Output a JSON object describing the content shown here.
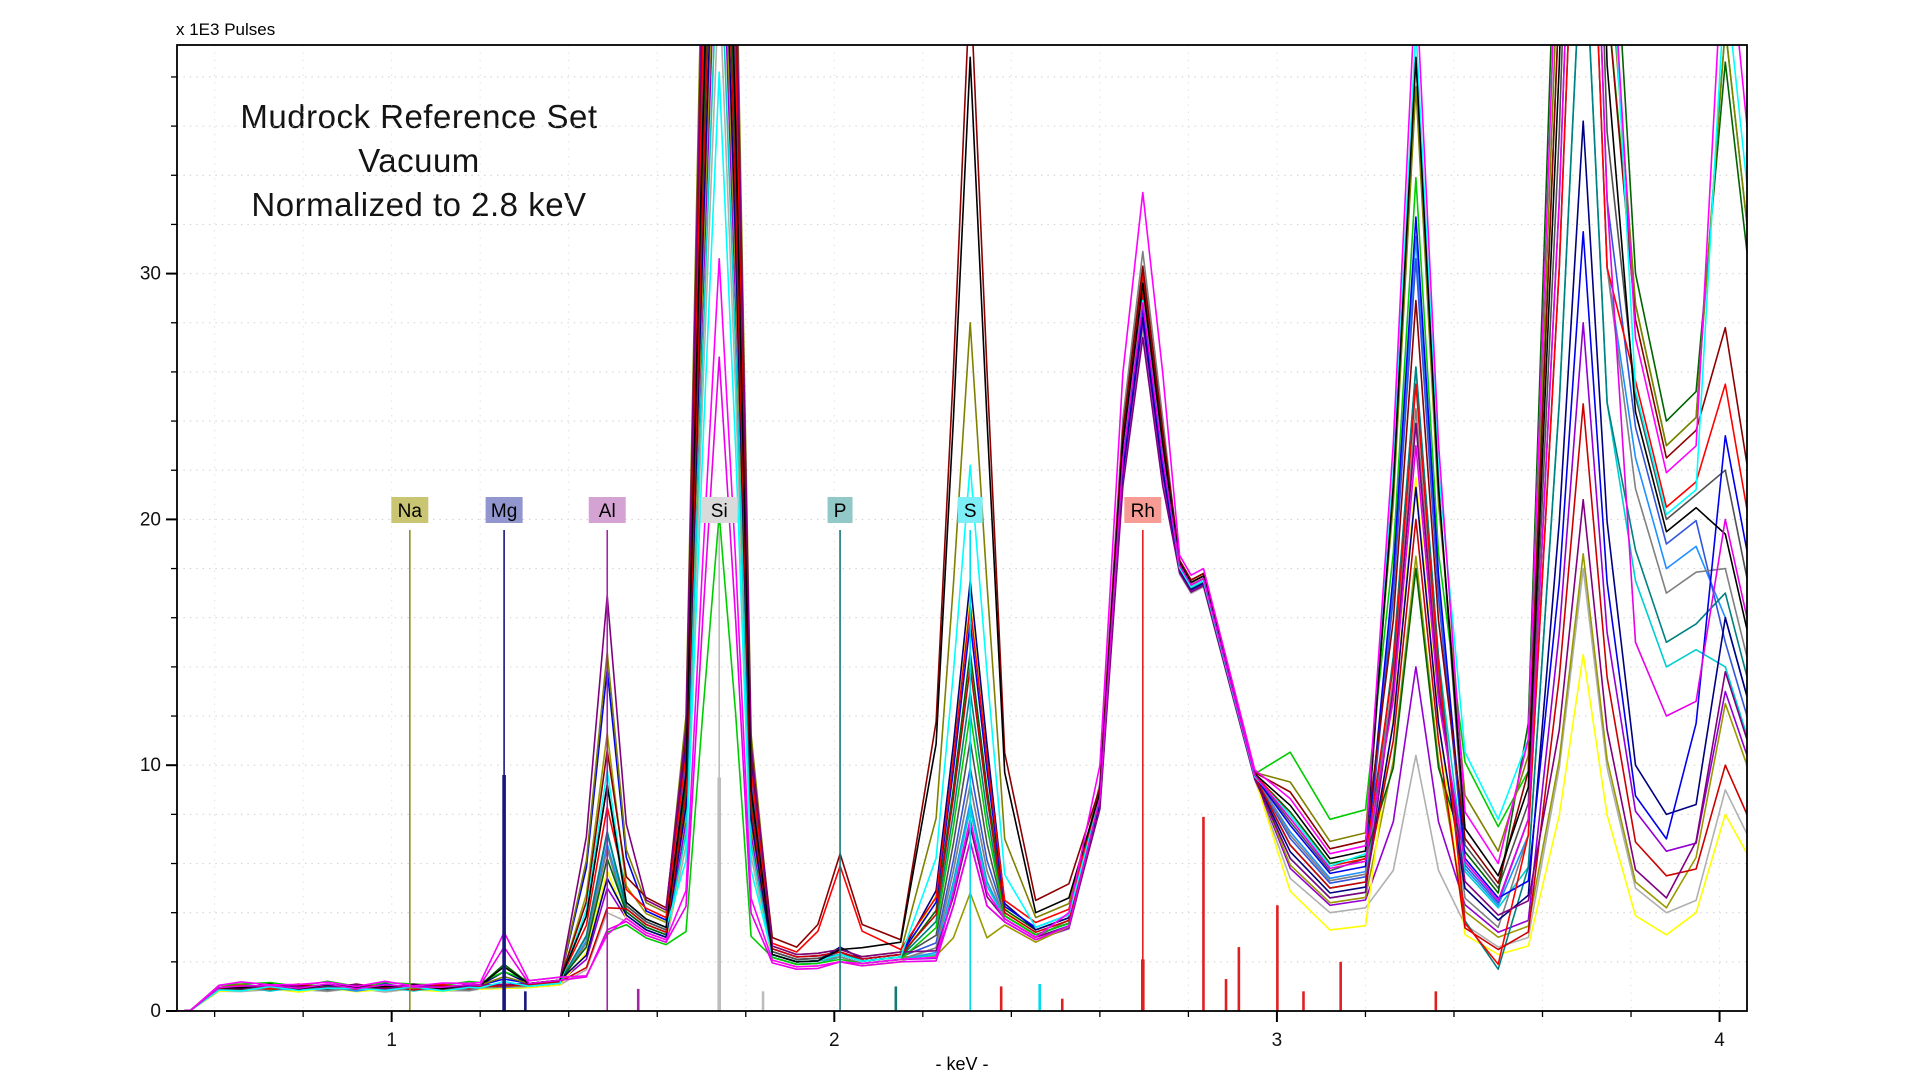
{
  "chart_data": {
    "type": "line",
    "title": "Mudrock Reference Set Vacuum Normalized to 2.8 keV",
    "title_lines": [
      "Mudrock Reference Set",
      "Vacuum",
      "Normalized to 2.8 keV"
    ],
    "xlabel": "- keV -",
    "ylabel": "x 1E3 Pulses",
    "xlim": [
      0.515,
      4.062
    ],
    "ylim": [
      0,
      39.3
    ],
    "x_ticks": [
      1,
      2,
      3,
      4
    ],
    "x_tick_labels": [
      "1",
      "2",
      "3",
      "4"
    ],
    "x_minor_step": 0.2,
    "y_ticks": [
      0,
      10,
      20,
      30
    ],
    "y_tick_labels": [
      "0",
      "10",
      "20",
      "30"
    ],
    "y_minor_step": 2,
    "grid": "dotted",
    "legend": "none",
    "element_markers": [
      {
        "symbol": "Na",
        "energy_kev": 1.041,
        "line_color": "#8f8f1f",
        "label_bg": "#c9c573",
        "intensity_bar": 0,
        "secondary_lines": []
      },
      {
        "symbol": "Mg",
        "energy_kev": 1.254,
        "line_color": "#16167e",
        "label_bg": "#9296cf",
        "intensity_bar": 9.6,
        "secondary_lines": [
          [
            1.302,
            0.8
          ]
        ]
      },
      {
        "symbol": "Al",
        "energy_kev": 1.487,
        "line_color": "#a424a4",
        "label_bg": "#d4a3d4",
        "intensity_bar": 0,
        "secondary_lines": [
          [
            1.557,
            0.9
          ]
        ]
      },
      {
        "symbol": "Si",
        "energy_kev": 1.74,
        "line_color": "#bdbdbd",
        "label_bg": "#dadada",
        "intensity_bar": 9.5,
        "secondary_lines": [
          [
            1.839,
            0.8
          ]
        ]
      },
      {
        "symbol": "P",
        "energy_kev": 2.013,
        "line_color": "#157878",
        "label_bg": "#92c8c8",
        "intensity_bar": 0,
        "secondary_lines": [
          [
            2.139,
            1.0
          ]
        ]
      },
      {
        "symbol": "S",
        "energy_kev": 2.307,
        "line_color": "#00dcec",
        "label_bg": "#7deef5",
        "intensity_bar": 0,
        "secondary_lines": [
          [
            2.464,
            1.1
          ]
        ]
      },
      {
        "symbol": "Rh",
        "energy_kev": 2.697,
        "line_color": "#e02020",
        "label_bg": "#f79b95",
        "intensity_bar": 2.1,
        "secondary_lines": [
          [
            2.377,
            1.0
          ],
          [
            2.515,
            0.5
          ],
          [
            2.834,
            7.9
          ],
          [
            2.885,
            1.3
          ],
          [
            2.914,
            2.6
          ],
          [
            3.001,
            4.3
          ],
          [
            3.06,
            0.8
          ],
          [
            3.144,
            2.0
          ],
          [
            3.359,
            0.8
          ]
        ]
      }
    ],
    "series_value_keys": [
      "plateau",
      "mg_1.254",
      "al_1.487",
      "valley_1.62",
      "si_1.74",
      "valley_1.915",
      "p_2.013",
      "valley_2.15",
      "s_2.307",
      "valley_2.455",
      "rh_2.697",
      "shoulder_2.834",
      "min_3.12",
      "k_3.314",
      "min_3.50",
      "ca_3.692",
      "min_3.88",
      "cakb_4.013"
    ],
    "series": [
      {
        "color": "#b0b0b0",
        "pl": 0.85,
        "mg": 0,
        "al": 4.0,
        "v1": 2.8,
        "si": 42,
        "v2": 1.8,
        "p": 2.0,
        "v3": 2.0,
        "s": 9.2,
        "v4": 2.9,
        "rh": 27.7,
        "sh": 17.25,
        "m3": 4.0,
        "k": 10.4,
        "m4": 2.6,
        "ca": 18,
        "m5": 4.0,
        "cb": 9
      },
      {
        "color": "#9400d3",
        "pl": 0.95,
        "mg": 0,
        "al": 5.0,
        "v1": 2.9,
        "si": 48,
        "v2": 1.9,
        "p": 2.2,
        "v3": 2.1,
        "s": 6.9,
        "v4": 2.9,
        "rh": 28.0,
        "sh": 17.35,
        "m3": 4.3,
        "k": 14,
        "m4": 3.2,
        "ca": 28,
        "m5": 6.5,
        "cb": 13
      },
      {
        "color": "#999900",
        "pl": 0.95,
        "mg": 0,
        "al": 11.3,
        "v1": 3.6,
        "si": 50,
        "v2": 2.1,
        "p": 2.3,
        "v3": 2.2,
        "s": 4.8,
        "v4": 2.8,
        "rh": 28.6,
        "sh": 17.5,
        "m3": 4.4,
        "k": 18.5,
        "m4": 3.0,
        "ca": 18.6,
        "m5": 4.2,
        "cb": 12.5
      },
      {
        "color": "#ffff00",
        "pl": 0.85,
        "mg": 0,
        "al": 5.7,
        "v1": 2.9,
        "si": 45,
        "v2": 1.8,
        "p": 2.0,
        "v3": 2.0,
        "s": 16.8,
        "v4": 2.9,
        "rh": 28.8,
        "sh": 17.4,
        "m3": 3.3,
        "k": 21.7,
        "m4": 2.3,
        "ca": 14.5,
        "m5": 3.1,
        "cb": 8
      },
      {
        "color": "#1e90ff",
        "pl": 0.9,
        "mg": 0,
        "al": 6.8,
        "v1": 3.1,
        "si": 58,
        "v2": 2.0,
        "p": 2.2,
        "v3": 2.1,
        "s": 8.5,
        "v4": 3.0,
        "rh": 28.9,
        "sh": 17.5,
        "m3": 5.4,
        "k": 31.5,
        "m4": 4.3,
        "ca": 55,
        "m5": 18,
        "cb": 16
      },
      {
        "color": "#3355dd",
        "pl": 0.95,
        "mg": 0,
        "al": 7.2,
        "v1": 3.3,
        "si": 62,
        "v2": 2.1,
        "p": 2.3,
        "v3": 2.2,
        "s": 9.9,
        "v4": 3.1,
        "rh": 28.5,
        "sh": 17.5,
        "m3": 5.2,
        "k": 30.6,
        "m4": 4.4,
        "ca": 60,
        "m5": 19,
        "cb": 15
      },
      {
        "color": "#00ced1",
        "pl": 0.9,
        "mg": 0,
        "al": 7.3,
        "v1": 3.0,
        "si": 45,
        "v2": 1.9,
        "p": 2.2,
        "v3": 2.1,
        "s": 8.2,
        "v4": 3.0,
        "rh": 28.4,
        "sh": 17.4,
        "m3": 4.6,
        "k": 26.2,
        "m4": 4.2,
        "ca": 45,
        "m5": 14,
        "cb": 14
      },
      {
        "color": "#008080",
        "pl": 0.95,
        "mg": 0,
        "al": 7.3,
        "v1": 3.2,
        "si": 55,
        "v2": 2.0,
        "p": 2.3,
        "v3": 2.2,
        "s": 13.0,
        "v4": 3.1,
        "rh": 28.3,
        "sh": 17.45,
        "m3": 5.0,
        "k": 26.2,
        "m4": 1.7,
        "ca": 45,
        "m5": 15,
        "cb": 17
      },
      {
        "color": "#808080",
        "pl": 0.9,
        "mg": 0,
        "al": 6.6,
        "v1": 3.0,
        "si": 56,
        "v2": 2.0,
        "p": 2.2,
        "v3": 2.1,
        "s": 9.2,
        "v4": 3.0,
        "rh": 30.9,
        "sh": 17.6,
        "m3": 5.3,
        "k": 24.5,
        "m4": 3.4,
        "ca": 55,
        "m5": 17,
        "cb": 18
      },
      {
        "color": "#505050",
        "pl": 0.95,
        "mg": 0,
        "al": 9.2,
        "v1": 3.3,
        "si": 60,
        "v2": 2.1,
        "p": 2.4,
        "v3": 2.2,
        "s": 11.0,
        "v4": 3.1,
        "rh": 29.8,
        "sh": 17.6,
        "m3": 5.7,
        "k": 38.8,
        "m4": 5.0,
        "ca": 65,
        "m5": 20,
        "cb": 22
      },
      {
        "color": "#006400",
        "pl": 1.0,
        "mg": 1.9,
        "al": 6.2,
        "v1": 3.1,
        "si": 58,
        "v2": 2.0,
        "p": 2.3,
        "v3": 2.2,
        "s": 14.6,
        "v4": 3.3,
        "rh": 29.0,
        "sh": 17.6,
        "m3": 6.0,
        "k": 18,
        "m4": 4.8,
        "ca": 90,
        "m5": 24,
        "cb": 38.6
      },
      {
        "color": "#000080",
        "pl": 1.0,
        "mg": 1.6,
        "al": 5.4,
        "v1": 3.0,
        "si": 52,
        "v2": 2.0,
        "p": 2.6,
        "v3": 2.3,
        "s": 17.5,
        "v4": 3.3,
        "rh": 28.2,
        "sh": 17.4,
        "m3": 4.8,
        "k": 21.3,
        "m4": 3.7,
        "ca": 36.2,
        "m5": 8,
        "cb": 16
      },
      {
        "color": "#00cc00",
        "pl": 1.1,
        "mg": 1.6,
        "al": 3.2,
        "v1": 2.7,
        "si": 20.2,
        "v2": 1.9,
        "p": 2.1,
        "v3": 2.1,
        "s": 12.1,
        "v4": 3.1,
        "rh": 29.4,
        "sh": 17.7,
        "m3": 7.8,
        "k": 33.9,
        "m4": 7.5,
        "ca": 75,
        "m5": 23,
        "cb": 40
      },
      {
        "color": "#0000ee",
        "pl": 1.0,
        "mg": 1.3,
        "al": 13.9,
        "v1": 3.7,
        "si": 68,
        "v2": 2.2,
        "p": 2.4,
        "v3": 2.3,
        "s": 15.8,
        "v4": 3.4,
        "rh": 28.6,
        "sh": 17.5,
        "m3": 5.6,
        "k": 32.3,
        "m4": 4.6,
        "ca": 31.7,
        "m5": 7,
        "cb": 23.4
      },
      {
        "color": "#cc0000",
        "pl": 0.95,
        "mg": 0,
        "al": 4.2,
        "v1": 3.2,
        "si": 55,
        "v2": 2.2,
        "p": 2.4,
        "v3": 2.3,
        "s": 14.0,
        "v4": 3.2,
        "rh": 29.2,
        "sh": 17.5,
        "m3": 5.0,
        "k": 20,
        "m4": 2.5,
        "ca": 24.7,
        "m5": 5.5,
        "cb": 10
      },
      {
        "color": "#808000",
        "pl": 1.0,
        "mg": 1.4,
        "al": 14.6,
        "v1": 4.0,
        "si": 75,
        "v2": 2.3,
        "p": 2.5,
        "v3": 2.4,
        "s": 28.0,
        "v4": 3.8,
        "rh": 30.0,
        "sh": 17.8,
        "m3": 6.9,
        "k": 37.6,
        "m4": 6.5,
        "ca": 80,
        "m5": 23,
        "cb": 40
      },
      {
        "color": "#ff0000",
        "pl": 1.0,
        "mg": 0,
        "al": 8.3,
        "v1": 3.8,
        "si": 65,
        "v2": 2.4,
        "p": 5.9,
        "v3": 2.5,
        "s": 16.5,
        "v4": 3.6,
        "rh": 30.0,
        "sh": 17.7,
        "m3": 5.9,
        "k": 25.5,
        "m4": 1.9,
        "ca": 55,
        "m5": 20.5,
        "cb": 25.5
      },
      {
        "color": "#8b0000",
        "pl": 1.0,
        "mg": 0,
        "al": 10.6,
        "v1": 4.2,
        "si": 70,
        "v2": 2.6,
        "p": 6.4,
        "v3": 2.9,
        "s": 42,
        "v4": 4.5,
        "rh": 30.3,
        "sh": 17.8,
        "m3": 6.6,
        "k": 28.9,
        "m4": 5.2,
        "ca": 75,
        "m5": 22.5,
        "cb": 27.8
      },
      {
        "color": "#800080",
        "pl": 1.0,
        "mg": 0,
        "al": 16.9,
        "v1": 4.1,
        "si": 72,
        "v2": 2.3,
        "p": 2.5,
        "v3": 2.4,
        "s": 7.5,
        "v4": 3.0,
        "rh": 27.4,
        "sh": 17.3,
        "m3": 4.6,
        "k": 23.9,
        "m4": 3.9,
        "ca": 20.8,
        "m5": 4.6,
        "cb": 13.8
      },
      {
        "color": "#00ffff",
        "pl": 0.9,
        "mg": 1.2,
        "al": 9.8,
        "v1": 3.4,
        "si": 38.2,
        "v2": 2.0,
        "p": 2.3,
        "v3": 2.2,
        "s": 22.2,
        "v4": 3.4,
        "rh": 28.9,
        "sh": 17.5,
        "m3": 5.9,
        "k": 40,
        "m4": 7.8,
        "ca": 85,
        "m5": 20.2,
        "cb": 42
      },
      {
        "color": "#000000",
        "pl": 1.0,
        "mg": 1.8,
        "al": 9.2,
        "v1": 3.4,
        "si": 60,
        "v2": 2.0,
        "p": 2.5,
        "v3": 2.8,
        "s": 38.8,
        "v4": 4.0,
        "rh": 29.6,
        "sh": 17.7,
        "m3": 6.2,
        "k": 38.8,
        "m4": 5.5,
        "ca": 70,
        "m5": 19.5,
        "cb": 19.4
      },
      {
        "color": "#e800e8",
        "pl": 1.0,
        "mg": 2.6,
        "al": 3.3,
        "v1": 2.8,
        "si": 26.6,
        "v2": 1.7,
        "p": 2.0,
        "v3": 2.0,
        "s": 6.9,
        "v4": 2.9,
        "rh": 28.8,
        "sh": 17.6,
        "m3": 5.8,
        "k": 23,
        "m4": 4.5,
        "ca": 60,
        "m5": 12,
        "cb": 20
      },
      {
        "color": "#ff00ff",
        "pl": 1.1,
        "mg": 3.2,
        "al": 3.1,
        "v1": 2.9,
        "si": 30.6,
        "v2": 1.8,
        "p": 2.0,
        "v3": 2.1,
        "s": 7.8,
        "v4": 3.0,
        "rh": 33.3,
        "sh": 18.0,
        "m3": 6.4,
        "k": 42,
        "m4": 6.0,
        "ca": 85,
        "m5": 21.9,
        "cb": 45
      }
    ]
  }
}
